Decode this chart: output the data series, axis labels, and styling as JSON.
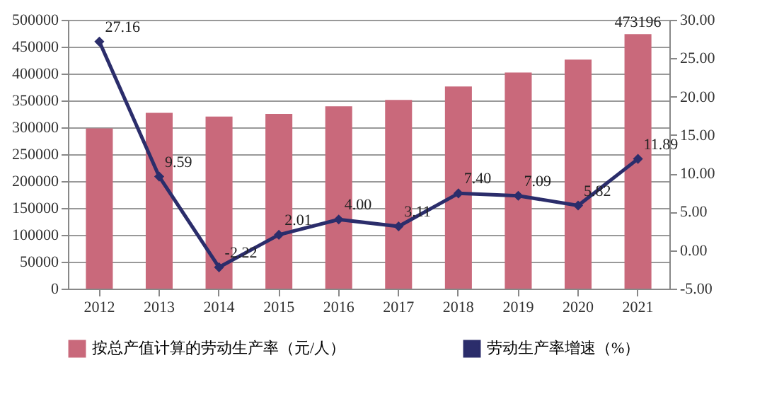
{
  "chart_data": {
    "type": "bar",
    "categories": [
      "2012",
      "2013",
      "2014",
      "2015",
      "2016",
      "2017",
      "2018",
      "2019",
      "2020",
      "2021"
    ],
    "series": [
      {
        "name": "按总产值计算的劳动生产率（元/人）",
        "type": "bar",
        "color": "#c9697b",
        "values": [
          298000,
          327000,
          320000,
          325000,
          339000,
          351000,
          376000,
          402000,
          426000,
          473196
        ],
        "value_labels": [
          null,
          null,
          null,
          null,
          null,
          null,
          null,
          null,
          null,
          "473196"
        ]
      },
      {
        "name": "劳动生产率增速（%）",
        "type": "line",
        "axis": "y2",
        "color": "#2b2d6b",
        "values": [
          27.16,
          9.59,
          -2.22,
          2.01,
          4.0,
          3.11,
          7.4,
          7.09,
          5.82,
          11.89
        ],
        "value_labels": [
          "27.16",
          "9.59",
          "-2.22",
          "2.01",
          "4.00",
          "3.11",
          "7.40",
          "7.09",
          "5.82",
          "11.89"
        ]
      }
    ],
    "ylim": [
      0,
      500000
    ],
    "yticks": [
      0,
      50000,
      100000,
      150000,
      200000,
      250000,
      300000,
      350000,
      400000,
      450000,
      500000
    ],
    "y2lim": [
      -5,
      30
    ],
    "y2ticks": [
      {
        "value": -5,
        "label": "-5.00"
      },
      {
        "value": 0,
        "label": "0.00"
      },
      {
        "value": 5,
        "label": "5.00"
      },
      {
        "value": 10,
        "label": "10.00"
      },
      {
        "value": 15,
        "label": "15.00"
      },
      {
        "value": 20,
        "label": "20.00"
      },
      {
        "value": 25,
        "label": "25.00"
      },
      {
        "value": 30,
        "label": "30.00"
      }
    ],
    "grid": "y",
    "legend": "bottom",
    "marker": "diamond"
  }
}
